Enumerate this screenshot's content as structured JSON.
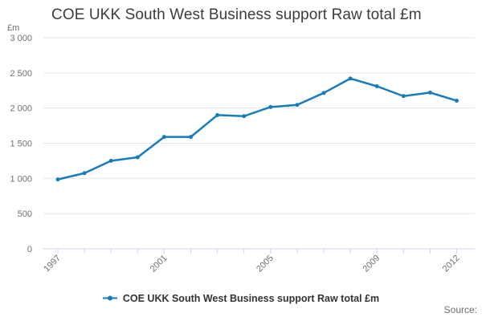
{
  "title": "COE UKK South West Business support Raw total £m",
  "y_axis": {
    "unit_label": "£m",
    "tick_labels_top_to_bottom": [
      "3 000",
      "2 500",
      "2 000",
      "1 500",
      "1 000",
      "500",
      "0"
    ]
  },
  "x_axis": {
    "labeled_ticks": [
      "1997",
      "2001",
      "2005",
      "2009",
      "2012"
    ]
  },
  "legend": {
    "items": [
      {
        "label": "COE UKK South West Business support Raw total £m"
      }
    ]
  },
  "footer": {
    "source_label": "Source:"
  },
  "colors": {
    "series_line": "#157dbc",
    "gridline": "#e6e6e6",
    "axis_line": "#ccd6eb",
    "tick_label_text": "#6f6f6f",
    "title_text": "#3c3c3c",
    "legend_text": "#333333",
    "source_text": "#6f6f6f",
    "background": "#ffffff"
  },
  "chart_data": {
    "type": "line",
    "title": "COE UKK South West Business support Raw total £m",
    "xlabel": "",
    "ylabel": "£m",
    "ylim": [
      0,
      3000
    ],
    "y_tick_step": 500,
    "grid": "horizontal-only",
    "legend_position": "bottom-center",
    "x": [
      1997,
      1998,
      1999,
      2000,
      2001,
      2002,
      2003,
      2004,
      2005,
      2006,
      2007,
      2008,
      2009,
      2010,
      2011,
      2012
    ],
    "x_label_ticks": [
      1997,
      2001,
      2005,
      2009,
      2012
    ],
    "series": [
      {
        "name": "COE UKK South West Business support Raw total £m",
        "marker": "circle",
        "values": [
          985,
          1075,
          1250,
          1300,
          1590,
          1590,
          1900,
          1885,
          2015,
          2045,
          2215,
          2420,
          2310,
          2170,
          2220,
          2105
        ]
      }
    ]
  }
}
